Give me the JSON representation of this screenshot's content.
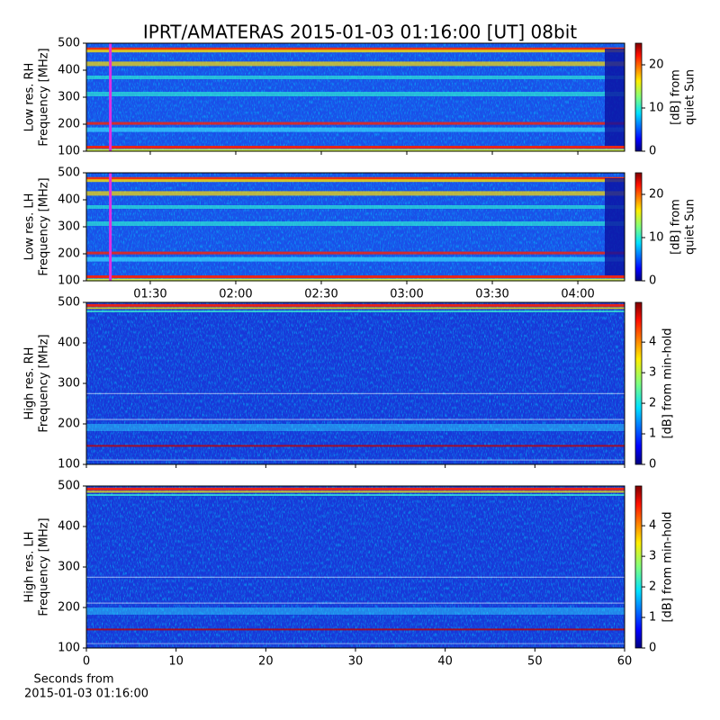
{
  "title": "IPRT/AMATERAS 2015-01-03 01:16:00 [UT]   08bit",
  "chart_data": [
    {
      "type": "heatmap",
      "ylabel": [
        "Low res. RH",
        "Frequency [MHz]"
      ],
      "ylim": [
        100,
        500
      ],
      "yticks": [
        100,
        200,
        300,
        400,
        500
      ],
      "xlim": [
        67.6,
        256.4
      ],
      "cursor": 76,
      "clim": [
        0,
        25
      ],
      "cticks": [
        0,
        10,
        20
      ],
      "clabel": [
        "[dB] from",
        "quiet Sun"
      ]
    },
    {
      "type": "heatmap",
      "ylabel": [
        "Low res. LH",
        "Frequency [MHz]"
      ],
      "ylim": [
        100,
        500
      ],
      "yticks": [
        100,
        200,
        300,
        400,
        500
      ],
      "xlim": [
        67.6,
        256.4
      ],
      "xticks": [
        {
          "value": 90,
          "label": "01:30"
        },
        {
          "value": 120,
          "label": "02:00"
        },
        {
          "value": 150,
          "label": "02:30"
        },
        {
          "value": 180,
          "label": "03:00"
        },
        {
          "value": 210,
          "label": "03:30"
        },
        {
          "value": 240,
          "label": "04:00"
        }
      ],
      "cursor": 76,
      "clim": [
        0,
        25
      ],
      "cticks": [
        0,
        10,
        20
      ],
      "clabel": [
        "[dB] from",
        "quiet Sun"
      ]
    },
    {
      "type": "heatmap",
      "ylabel": [
        "High res. RH",
        "Frequency [MHz]"
      ],
      "ylim": [
        100,
        500
      ],
      "yticks": [
        100,
        200,
        300,
        400,
        500
      ],
      "xlim": [
        0,
        60
      ],
      "clim": [
        0,
        5.3
      ],
      "cticks": [
        0,
        1,
        2,
        3,
        4
      ],
      "clabel": [
        "[dB] from min-hold"
      ]
    },
    {
      "type": "heatmap",
      "ylabel": [
        "High res. LH",
        "Frequency [MHz]"
      ],
      "ylim": [
        100,
        500
      ],
      "yticks": [
        100,
        200,
        300,
        400,
        500
      ],
      "xlim": [
        0,
        60
      ],
      "xticks": [
        0,
        10,
        20,
        30,
        40,
        50,
        60
      ],
      "xlabel": [
        "Seconds from",
        "2015-01-03 01:16:00"
      ],
      "clim": [
        0,
        5.3
      ],
      "cticks": [
        0,
        1,
        2,
        3,
        4
      ],
      "clabel": [
        "[dB] from min-hold"
      ]
    }
  ]
}
